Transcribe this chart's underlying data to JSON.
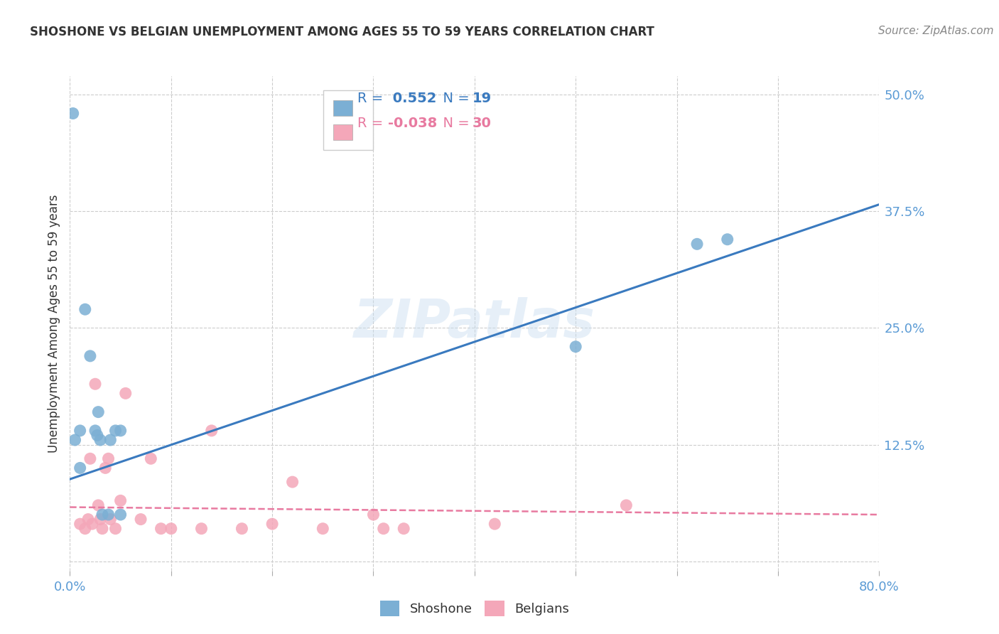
{
  "title": "SHOSHONE VS BELGIAN UNEMPLOYMENT AMONG AGES 55 TO 59 YEARS CORRELATION CHART",
  "source": "Source: ZipAtlas.com",
  "ylabel": "Unemployment Among Ages 55 to 59 years",
  "xlim": [
    0,
    0.8
  ],
  "ylim": [
    -0.01,
    0.52
  ],
  "xticks": [
    0.0,
    0.1,
    0.2,
    0.3,
    0.4,
    0.5,
    0.6,
    0.7,
    0.8
  ],
  "xticklabels": [
    "0.0%",
    "",
    "",
    "",
    "",
    "",
    "",
    "",
    "80.0%"
  ],
  "yticks": [
    0.0,
    0.125,
    0.25,
    0.375,
    0.5
  ],
  "yticklabels": [
    "",
    "12.5%",
    "25.0%",
    "37.5%",
    "50.0%"
  ],
  "shoshone_color": "#7bafd4",
  "belgian_color": "#f4a7b9",
  "shoshone_line_color": "#3a7abf",
  "belgian_line_color": "#e87aa0",
  "watermark": "ZIPatlas",
  "shoshone_x": [
    0.003,
    0.005,
    0.01,
    0.015,
    0.02,
    0.025,
    0.027,
    0.028,
    0.03,
    0.032,
    0.038,
    0.04,
    0.045,
    0.05,
    0.05,
    0.5,
    0.62,
    0.65,
    0.01
  ],
  "shoshone_y": [
    0.48,
    0.13,
    0.14,
    0.27,
    0.22,
    0.14,
    0.135,
    0.16,
    0.13,
    0.05,
    0.05,
    0.13,
    0.14,
    0.14,
    0.05,
    0.23,
    0.34,
    0.345,
    0.1
  ],
  "belgian_x": [
    0.01,
    0.015,
    0.018,
    0.02,
    0.022,
    0.025,
    0.028,
    0.03,
    0.032,
    0.035,
    0.038,
    0.04,
    0.045,
    0.05,
    0.055,
    0.07,
    0.08,
    0.09,
    0.1,
    0.13,
    0.14,
    0.17,
    0.2,
    0.22,
    0.25,
    0.3,
    0.31,
    0.33,
    0.42,
    0.55
  ],
  "belgian_y": [
    0.04,
    0.035,
    0.045,
    0.11,
    0.04,
    0.19,
    0.06,
    0.045,
    0.035,
    0.1,
    0.11,
    0.045,
    0.035,
    0.065,
    0.18,
    0.045,
    0.11,
    0.035,
    0.035,
    0.035,
    0.14,
    0.035,
    0.04,
    0.085,
    0.035,
    0.05,
    0.035,
    0.035,
    0.04,
    0.06
  ],
  "shoshone_trend_intercept": 0.088,
  "shoshone_trend_slope": 0.368,
  "belgian_trend_intercept": 0.058,
  "belgian_trend_slope": -0.01,
  "background_color": "#ffffff",
  "grid_color": "#cccccc",
  "title_color": "#333333",
  "tick_color": "#5b9bd5",
  "legend_r1": "R = ",
  "legend_v1": " 0.552",
  "legend_n1_label": "N = ",
  "legend_n1_val": "19",
  "legend_r2": "R = ",
  "legend_v2": "-0.038",
  "legend_n2_label": "N = ",
  "legend_n2_val": "30"
}
